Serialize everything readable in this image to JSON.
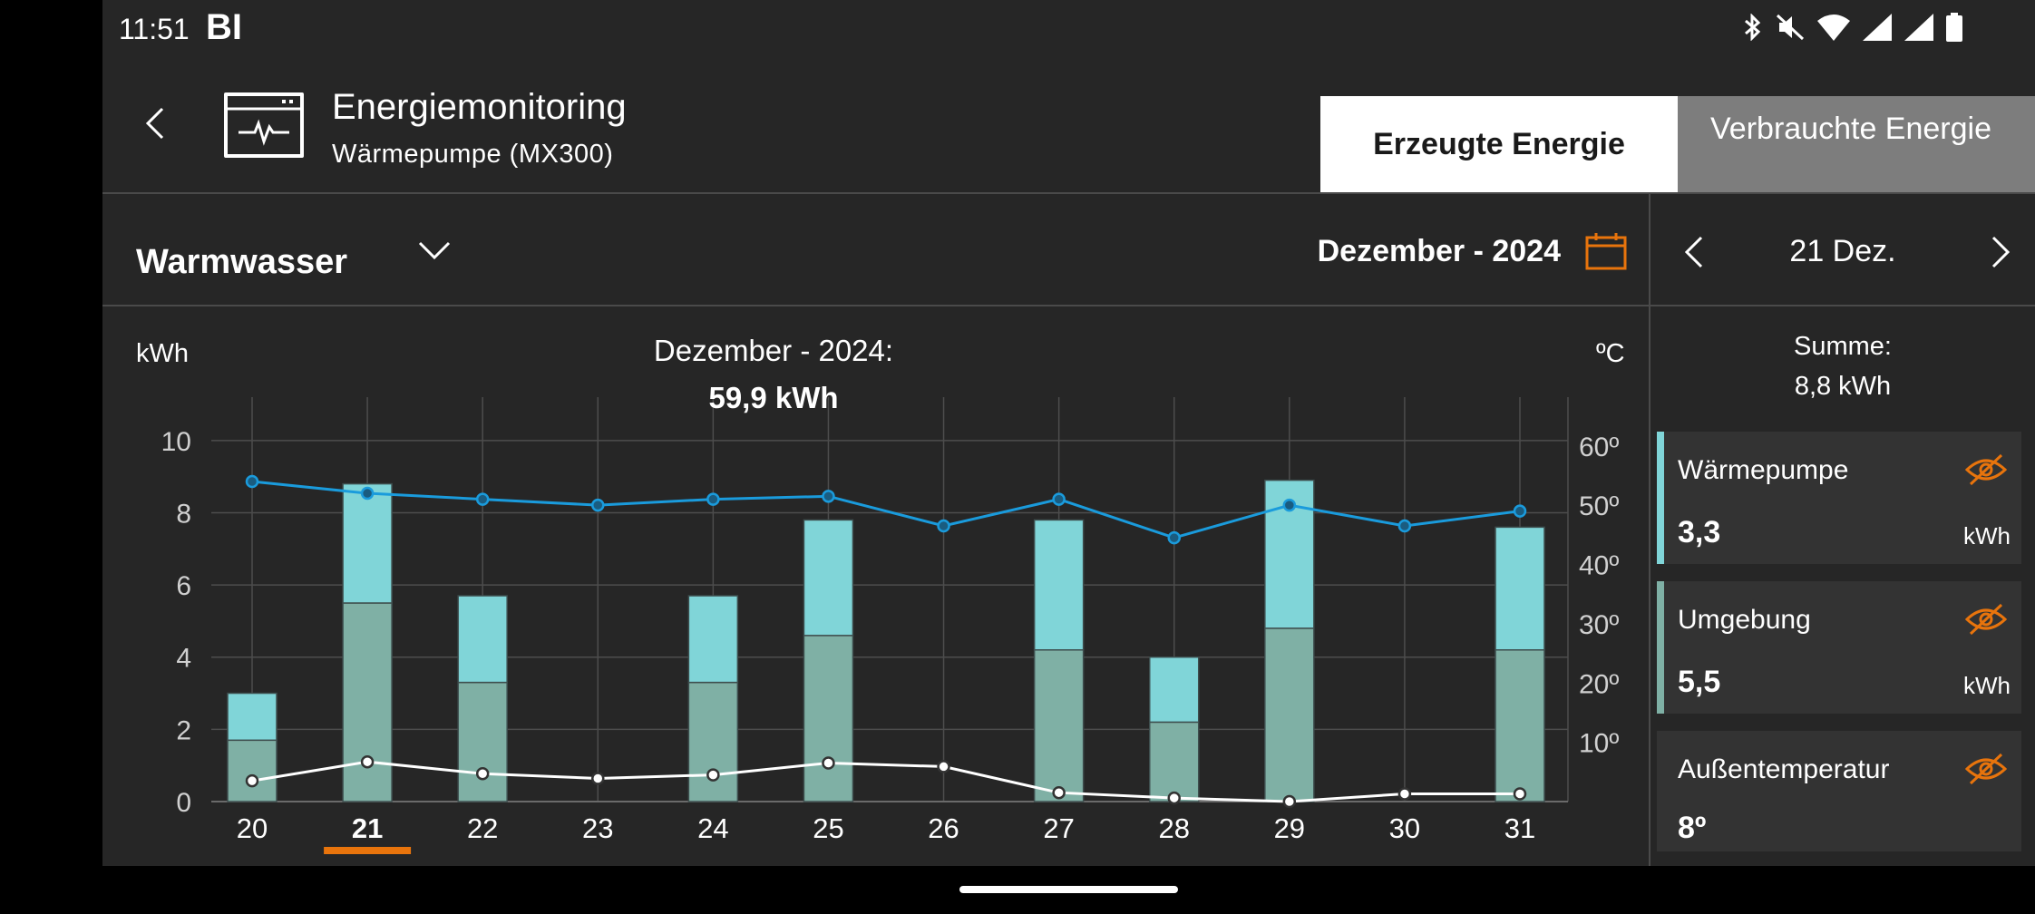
{
  "status_bar": {
    "time": "11:51",
    "carrier": "BI",
    "icons": [
      "bluetooth-icon",
      "mute-icon",
      "wifi-icon",
      "signal-icon",
      "signal-icon",
      "battery-icon"
    ]
  },
  "header": {
    "title": "Energiemonitoring",
    "subtitle": "Wärmepumpe (MX300)",
    "tabs": [
      {
        "label": "Erzeugte Energie",
        "active": true
      },
      {
        "label": "Verbrauchte Energie",
        "active": false
      }
    ]
  },
  "filter": {
    "category": "Warmwasser",
    "period": "Dezember - 2024"
  },
  "side_panel": {
    "day": "21 Dez.",
    "sum_label": "Summe:",
    "sum_value": "8,8 kWh",
    "cards": [
      {
        "label": "Wärmepumpe",
        "value": "3,3",
        "unit": "kWh",
        "color": "#80d5d8"
      },
      {
        "label": "Umgebung",
        "value": "5,5",
        "unit": "kWh",
        "color": "#7fb0a5"
      },
      {
        "label": "Außentemperatur",
        "value": "8º",
        "unit": "",
        "color": ""
      }
    ]
  },
  "chart_data": {
    "type": "bar",
    "title": "Dezember - 2024:",
    "total": "59,9 kWh",
    "ylabel": "kWh",
    "y2label": "ºC",
    "ylim": [
      0,
      11
    ],
    "y_ticks": [
      0,
      2,
      4,
      6,
      8,
      10
    ],
    "y2_ticks": [
      "10º",
      "20º",
      "30º",
      "40º",
      "50º",
      "60º"
    ],
    "categories": [
      "20",
      "21",
      "22",
      "23",
      "24",
      "25",
      "26",
      "27",
      "28",
      "29",
      "30",
      "31"
    ],
    "selected_category": "21",
    "series": [
      {
        "name": "Umgebung",
        "values": [
          1.7,
          5.5,
          3.3,
          0,
          3.3,
          4.6,
          0,
          4.2,
          2.2,
          4.8,
          0,
          4.2
        ],
        "color": "#7fb0a5"
      },
      {
        "name": "Wärmepumpe",
        "values": [
          1.3,
          3.3,
          2.4,
          0,
          2.4,
          3.2,
          0,
          3.6,
          1.8,
          4.1,
          0,
          3.4
        ],
        "color": "#80d5d8"
      }
    ],
    "lines": [
      {
        "values_y2": [
          54,
          52,
          51,
          50,
          51,
          51.5,
          46.5,
          51,
          44.5,
          50,
          46.5,
          49
        ],
        "color": "#1a9bdc"
      },
      {
        "values_y2": [
          3.5,
          6.7,
          4.7,
          3.9,
          4.5,
          6.5,
          5.9,
          1.5,
          0.6,
          0,
          1.3,
          1.3
        ],
        "color": "#ffffff"
      }
    ],
    "y2lim": [
      0,
      67
    ],
    "accent": "#e8740c"
  }
}
